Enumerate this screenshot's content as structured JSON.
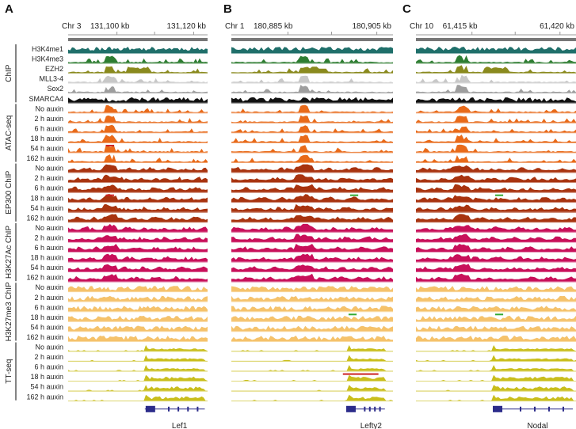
{
  "panels": [
    {
      "letter": "A",
      "chrom": "Chr 3",
      "start_label": "131,100 kb",
      "end_label": "131,120 kb",
      "gene": "Lef1",
      "seed": 11,
      "peak_pos": 0.3,
      "gene_start": 0.55,
      "gene_end": 0.98,
      "gene_block": 0.59,
      "marks": [
        {
          "row": 9,
          "pos": 0.3,
          "color": "#cc2222",
          "w": 0.06
        },
        {
          "row": 14,
          "pos": 0.3,
          "color": "#cc2222",
          "w": 0.06
        }
      ]
    },
    {
      "letter": "B",
      "chrom": "Chr 1",
      "start_label": "180,885 kb",
      "end_label": "180,905 kb",
      "gene": "Lefty2",
      "seed": 29,
      "peak_pos": 0.45,
      "gene_start": 0.72,
      "gene_end": 0.95,
      "gene_block": 0.74,
      "marks": [
        {
          "row": 14,
          "pos": 0.76,
          "color": "#33aa33",
          "w": 0.05
        },
        {
          "row": 26,
          "pos": 0.75,
          "color": "#33aa33",
          "w": 0.05
        },
        {
          "row": 32,
          "pos": 0.8,
          "color": "#cc2222",
          "w": 0.22
        }
      ]
    },
    {
      "letter": "C",
      "chrom": "Chr 10",
      "start_label": "61,415 kb",
      "end_label": "61,420 kb",
      "gene": "Nodal",
      "seed": 47,
      "peak_pos": 0.28,
      "gene_start": 0.48,
      "gene_end": 0.98,
      "gene_block": 0.51,
      "marks": [
        {
          "row": 14,
          "pos": 0.52,
          "color": "#33aa33",
          "w": 0.05
        },
        {
          "row": 26,
          "pos": 0.52,
          "color": "#33aa33",
          "w": 0.05
        }
      ]
    }
  ],
  "groups": [
    {
      "name": "ChIP",
      "tracks": [
        "H3K4me1",
        "H3K4me3",
        "EZH2",
        "MLL3-4",
        "Sox2",
        "SMARCA4"
      ],
      "colors": [
        "#1f6f6a",
        "#2e7d32",
        "#8a8a1e",
        "#c8c8c8",
        "#9e9e9e",
        "#111111"
      ],
      "type": [
        "broad",
        "peak",
        "peak",
        "peak",
        "peak",
        "dense"
      ]
    },
    {
      "name": "ATAC-seq",
      "tracks": [
        "No auxin",
        "2 h auxin",
        "6 h auxin",
        "18 h auxin",
        "54 h auxin",
        "162 h auxin"
      ],
      "color": "#e86a1a",
      "type": "peak"
    },
    {
      "name": "EP300 ChIP",
      "tracks": [
        "No auxin",
        "2 h auxin",
        "6 h auxin",
        "18 h auxin",
        "54 h auxin",
        "162 h auxin"
      ],
      "color": "#a8330f",
      "type": "broad"
    },
    {
      "name": "H3K27Ac ChIP",
      "tracks": [
        "No auxin",
        "2 h auxin",
        "6 h auxin",
        "18 h auxin",
        "54 h auxin",
        "162 h auxin"
      ],
      "color": "#c8105a",
      "type": "broad"
    },
    {
      "name": "H3K27me3 ChIP",
      "tracks": [
        "No auxin",
        "2 h auxin",
        "6 h auxin",
        "18 h auxin",
        "54 h auxin",
        "162 h auxin"
      ],
      "color": "#f5c26b",
      "type": "dense"
    },
    {
      "name": "TT-seq",
      "tracks": [
        "No auxin",
        "2 h auxin",
        "6 h auxin",
        "18 h auxin",
        "54 h auxin",
        "162 h auxin"
      ],
      "color": "#c9be1c",
      "type": "gene"
    }
  ]
}
